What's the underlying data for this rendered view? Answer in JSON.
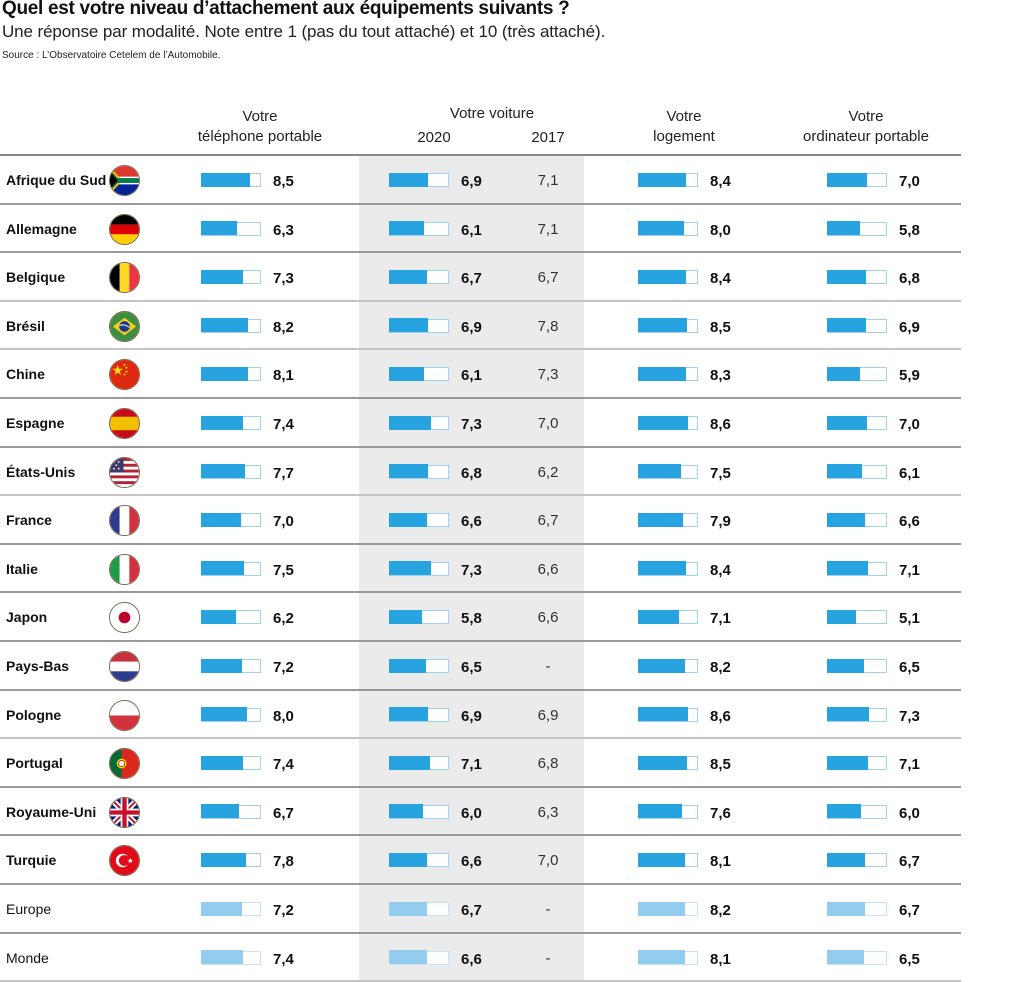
{
  "title": "Quel est votre niveau d’attachement aux équipements suivants ?",
  "subtitle": "Une réponse par modalité. Note entre 1 (pas du tout attaché) et 10 (très attaché).",
  "source": "Source : L’Observatoire Cetelem de l’Automobile.",
  "headers": {
    "phone": [
      "Votre",
      "téléphone portable"
    ],
    "car": "Votre voiture",
    "car_2020": "2020",
    "car_2017": "2017",
    "home": [
      "Votre",
      "logement"
    ],
    "laptop": [
      "Votre",
      "ordinateur portable"
    ]
  },
  "colors": {
    "bar_fill": "#27a4e0",
    "bar_outline": "#9fd2ef",
    "aggregate_bar_fill": "#93ccef",
    "car_column_shade": "#ebebeb"
  },
  "chart_data": {
    "type": "table",
    "title": "Quel est votre niveau d’attachement aux équipements suivants ?",
    "subtitle": "Une réponse par modalité. Note entre 1 (pas du tout attaché) et 10 (très attaché).",
    "scale": [
      0,
      10
    ],
    "columns": [
      "Votre téléphone portable",
      "Votre voiture 2020",
      "Votre voiture 2017",
      "Votre logement",
      "Votre ordinateur portable"
    ],
    "rows": [
      {
        "country": "Afrique du Sud",
        "flag": "south-africa-flag-icon",
        "phone": "8,5",
        "car2020": "6,9",
        "car2017": "7,1",
        "home": "8,4",
        "laptop": "7,0",
        "aggregate": false
      },
      {
        "country": "Allemagne",
        "flag": "germany-flag-icon",
        "phone": "6,3",
        "car2020": "6,1",
        "car2017": "7,1",
        "home": "8,0",
        "laptop": "5,8",
        "aggregate": false
      },
      {
        "country": "Belgique",
        "flag": "belgium-flag-icon",
        "phone": "7,3",
        "car2020": "6,7",
        "car2017": "6,7",
        "home": "8,4",
        "laptop": "6,8",
        "aggregate": false
      },
      {
        "country": "Brésil",
        "flag": "brazil-flag-icon",
        "phone": "8,2",
        "car2020": "6,9",
        "car2017": "7,8",
        "home": "8,5",
        "laptop": "6,9",
        "aggregate": false
      },
      {
        "country": "Chine",
        "flag": "china-flag-icon",
        "phone": "8,1",
        "car2020": "6,1",
        "car2017": "7,3",
        "home": "8,3",
        "laptop": "5,9",
        "aggregate": false
      },
      {
        "country": "Espagne",
        "flag": "spain-flag-icon",
        "phone": "7,4",
        "car2020": "7,3",
        "car2017": "7,0",
        "home": "8,6",
        "laptop": "7,0",
        "aggregate": false
      },
      {
        "country": "États-Unis",
        "flag": "usa-flag-icon",
        "phone": "7,7",
        "car2020": "6,8",
        "car2017": "6,2",
        "home": "7,5",
        "laptop": "6,1",
        "aggregate": false
      },
      {
        "country": "France",
        "flag": "france-flag-icon",
        "phone": "7,0",
        "car2020": "6,6",
        "car2017": "6,7",
        "home": "7,9",
        "laptop": "6,6",
        "aggregate": false
      },
      {
        "country": "Italie",
        "flag": "italy-flag-icon",
        "phone": "7,5",
        "car2020": "7,3",
        "car2017": "6,6",
        "home": "8,4",
        "laptop": "7,1",
        "aggregate": false
      },
      {
        "country": "Japon",
        "flag": "japan-flag-icon",
        "phone": "6,2",
        "car2020": "5,8",
        "car2017": "6,6",
        "home": "7,1",
        "laptop": "5,1",
        "aggregate": false
      },
      {
        "country": "Pays-Bas",
        "flag": "netherlands-flag-icon",
        "phone": "7,2",
        "car2020": "6,5",
        "car2017": "-",
        "home": "8,2",
        "laptop": "6,5",
        "aggregate": false
      },
      {
        "country": "Pologne",
        "flag": "poland-flag-icon",
        "phone": "8,0",
        "car2020": "6,9",
        "car2017": "6,9",
        "home": "8,6",
        "laptop": "7,3",
        "aggregate": false
      },
      {
        "country": "Portugal",
        "flag": "portugal-flag-icon",
        "phone": "7,4",
        "car2020": "7,1",
        "car2017": "6,8",
        "home": "8,5",
        "laptop": "7,1",
        "aggregate": false
      },
      {
        "country": "Royaume-Uni",
        "flag": "uk-flag-icon",
        "phone": "6,7",
        "car2020": "6,0",
        "car2017": "6,3",
        "home": "7,6",
        "laptop": "6,0",
        "aggregate": false
      },
      {
        "country": "Turquie",
        "flag": "turkey-flag-icon",
        "phone": "7,8",
        "car2020": "6,6",
        "car2017": "7,0",
        "home": "8,1",
        "laptop": "6,7",
        "aggregate": false
      },
      {
        "country": "Europe",
        "flag": null,
        "phone": "7,2",
        "car2020": "6,7",
        "car2017": "-",
        "home": "8,2",
        "laptop": "6,7",
        "aggregate": true
      },
      {
        "country": "Monde",
        "flag": null,
        "phone": "7,4",
        "car2020": "6,6",
        "car2017": "-",
        "home": "8,1",
        "laptop": "6,5",
        "aggregate": true
      }
    ]
  }
}
